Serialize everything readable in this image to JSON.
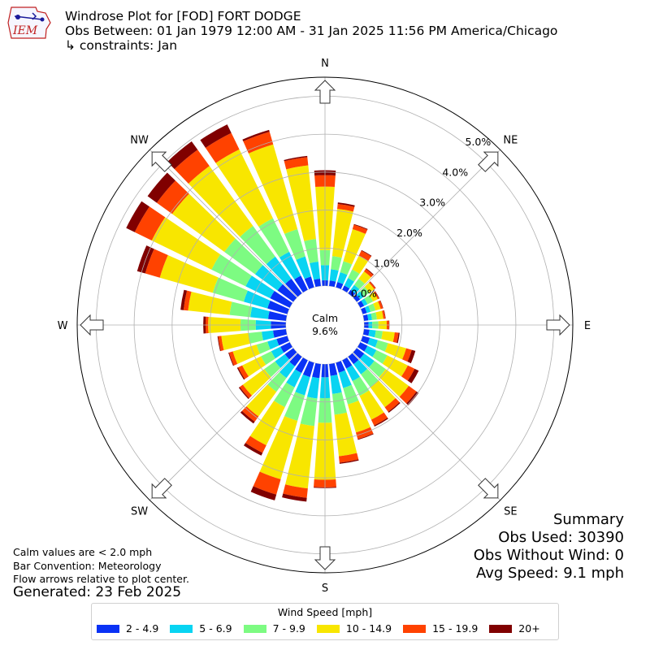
{
  "header": {
    "title": "Windrose Plot for [FOD] FORT DODGE",
    "period": "Obs Between: 01 Jan 1979 12:00 AM - 31 Jan 2025 11:56 PM America/Chicago",
    "constraints": "↳ constraints: Jan",
    "logo_text": "IEM"
  },
  "notes": {
    "calm": "Calm values are < 2.0 mph",
    "convention": "Bar Convention: Meteorology",
    "arrows": "Flow arrows relative to plot center.",
    "generated": "Generated: 23 Feb 2025"
  },
  "summary": {
    "heading": "Summary",
    "obs_used": "Obs Used: 30390",
    "obs_without_wind": "Obs Without Wind: 0",
    "avg_speed": "Avg Speed: 9.1 mph"
  },
  "chart_data": {
    "type": "windrose",
    "calm_label": "Calm",
    "calm_value": "9.6%",
    "directions": [
      "N",
      "NE",
      "E",
      "SE",
      "S",
      "SW",
      "W",
      "NW"
    ],
    "radial_ticks": [
      "0.0%",
      "1.0%",
      "2.0%",
      "3.0%",
      "4.0%",
      "5.0%"
    ],
    "radial_max": 5.5,
    "calm_percent": 9.6,
    "legend_title": "Wind Speed [mph]",
    "bins": [
      "2 - 4.9",
      "5 - 6.9",
      "7 - 9.9",
      "10 - 14.9",
      "15 - 19.9",
      "20+"
    ],
    "colors": [
      "#0a32f5",
      "#08d4f2",
      "#7dfb82",
      "#f8e600",
      "#ff4200",
      "#800000"
    ],
    "sector_directions_deg": [
      0,
      10,
      20,
      30,
      40,
      50,
      60,
      70,
      80,
      90,
      100,
      110,
      120,
      130,
      140,
      150,
      160,
      170,
      180,
      190,
      200,
      210,
      220,
      230,
      240,
      250,
      260,
      270,
      280,
      290,
      300,
      310,
      320,
      330,
      340,
      350
    ],
    "sector_cumulative_percent": [
      [
        0.15,
        0.55,
        0.95,
        2.62,
        2.92,
        3.05
      ],
      [
        0.15,
        0.45,
        0.8,
        2.05,
        2.18,
        2.22
      ],
      [
        0.15,
        0.42,
        0.72,
        1.6,
        1.72,
        1.74
      ],
      [
        0.13,
        0.35,
        0.6,
        1.0,
        1.15,
        1.17
      ],
      [
        0.12,
        0.28,
        0.48,
        0.72,
        0.8,
        0.82
      ],
      [
        0.12,
        0.25,
        0.42,
        0.58,
        0.62,
        0.63
      ],
      [
        0.12,
        0.22,
        0.38,
        0.52,
        0.56,
        0.57
      ],
      [
        0.12,
        0.22,
        0.36,
        0.5,
        0.56,
        0.57
      ],
      [
        0.12,
        0.22,
        0.35,
        0.52,
        0.57,
        0.58
      ],
      [
        0.12,
        0.22,
        0.38,
        0.6,
        0.66,
        0.67
      ],
      [
        0.15,
        0.32,
        0.5,
        0.82,
        0.92,
        0.95
      ],
      [
        0.2,
        0.42,
        0.7,
        1.2,
        1.35,
        1.45
      ],
      [
        0.22,
        0.48,
        0.8,
        1.4,
        1.6,
        1.72
      ],
      [
        0.25,
        0.58,
        0.95,
        1.7,
        1.95,
        2.02
      ],
      [
        0.25,
        0.58,
        1.0,
        1.65,
        1.8,
        1.83
      ],
      [
        0.25,
        0.62,
        1.05,
        1.75,
        1.92,
        1.95
      ],
      [
        0.28,
        0.7,
        1.15,
        1.92,
        2.1,
        2.12
      ],
      [
        0.32,
        0.8,
        1.35,
        2.45,
        2.62,
        2.65
      ],
      [
        0.35,
        0.9,
        1.55,
        3.05,
        3.25,
        3.27
      ],
      [
        0.38,
        0.92,
        1.65,
        3.3,
        3.55,
        3.65
      ],
      [
        0.4,
        0.9,
        1.6,
        3.2,
        3.62,
        3.78
      ],
      [
        0.38,
        0.8,
        1.38,
        2.5,
        2.72,
        2.8
      ],
      [
        0.32,
        0.7,
        1.15,
        1.95,
        2.12,
        2.18
      ],
      [
        0.28,
        0.6,
        0.95,
        1.65,
        1.75,
        1.78
      ],
      [
        0.28,
        0.55,
        0.85,
        1.4,
        1.52,
        1.55
      ],
      [
        0.3,
        0.55,
        0.85,
        1.5,
        1.6,
        1.62
      ],
      [
        0.35,
        0.65,
        1.0,
        1.72,
        1.8,
        1.82
      ],
      [
        0.4,
        0.8,
        1.2,
        2.05,
        2.12,
        2.18
      ],
      [
        0.48,
        0.95,
        1.5,
        2.6,
        2.72,
        2.8
      ],
      [
        0.55,
        1.2,
        2.05,
        3.5,
        3.9,
        4.12
      ],
      [
        0.58,
        1.3,
        2.3,
        4.05,
        4.55,
        4.8
      ],
      [
        0.52,
        1.25,
        2.25,
        3.95,
        4.45,
        4.75
      ],
      [
        0.48,
        1.2,
        2.2,
        4.15,
        4.68,
        4.95
      ],
      [
        0.42,
        1.12,
        2.1,
        4.12,
        4.6,
        4.85
      ],
      [
        0.3,
        0.85,
        1.6,
        3.92,
        4.27,
        4.32
      ],
      [
        0.2,
        0.65,
        1.25,
        3.2,
        3.42,
        3.45
      ]
    ]
  }
}
